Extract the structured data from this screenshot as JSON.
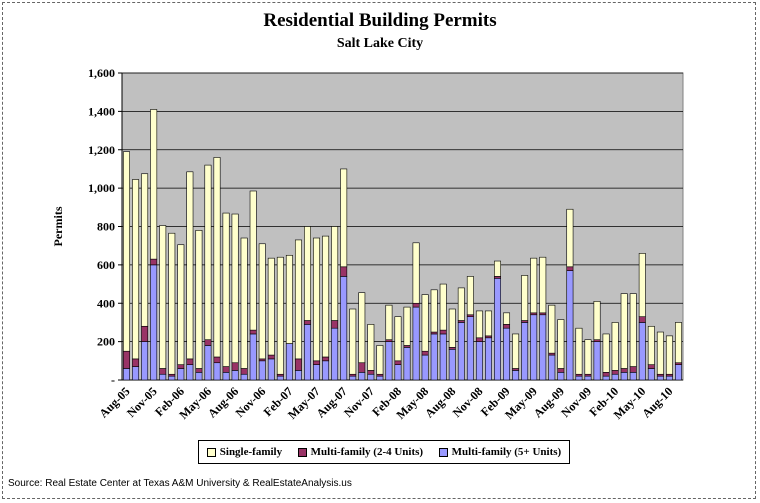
{
  "chart_data": {
    "type": "bar",
    "stacked": true,
    "title": "Residential Building Permits",
    "subtitle": "Salt Lake City",
    "ylabel": "Permits",
    "ylim": [
      0,
      1600
    ],
    "yticks": [
      "-",
      "200",
      "400",
      "600",
      "800",
      "1,000",
      "1,200",
      "1,400",
      "1,600"
    ],
    "xtick_labels": [
      "Aug-05",
      "Nov-05",
      "Feb-06",
      "May-06",
      "Aug-06",
      "Nov-06",
      "Feb-07",
      "May-07",
      "Aug-07",
      "Nov-07",
      "Feb-08",
      "May-08",
      "Aug-08",
      "Nov-08",
      "Feb-09",
      "May-09",
      "Aug-09",
      "Nov-09",
      "Feb-10",
      "May-10",
      "Aug-10"
    ],
    "grid": true,
    "legend_position": "bottom",
    "colors": {
      "plot_bg": "#c0c0c0",
      "single": "#ffffcc",
      "multi24": "#993366",
      "multi5": "#9999ff"
    },
    "series": [
      {
        "name": "Multi-family (5+ Units)",
        "values": [
          60,
          70,
          200,
          600,
          30,
          20,
          60,
          80,
          40,
          180,
          90,
          40,
          50,
          30,
          240,
          100,
          110,
          20,
          190,
          50,
          290,
          80,
          100,
          270,
          540,
          20,
          40,
          30,
          20,
          200,
          80,
          170,
          380,
          130,
          240,
          240,
          160,
          300,
          330,
          200,
          220,
          530,
          270,
          50,
          300,
          340,
          340,
          130,
          40,
          570,
          20,
          20,
          200,
          20,
          30,
          40,
          40,
          300,
          60,
          20,
          20,
          80
        ]
      },
      {
        "name": "Multi-family (2-4 Units)",
        "values": [
          90,
          40,
          80,
          30,
          30,
          10,
          20,
          30,
          20,
          30,
          30,
          30,
          40,
          30,
          20,
          10,
          20,
          10,
          0,
          60,
          20,
          20,
          20,
          40,
          50,
          10,
          50,
          20,
          10,
          10,
          20,
          10,
          20,
          20,
          10,
          20,
          10,
          10,
          10,
          20,
          10,
          10,
          20,
          10,
          10,
          10,
          10,
          10,
          20,
          20,
          10,
          10,
          10,
          20,
          20,
          20,
          30,
          30,
          20,
          10,
          10,
          10
        ]
      },
      {
        "name": "Single-family",
        "values": [
          1040,
          935,
          795,
          780,
          745,
          735,
          625,
          975,
          720,
          910,
          1040,
          800,
          775,
          680,
          725,
          600,
          505,
          610,
          460,
          620,
          490,
          640,
          630,
          490,
          510,
          340,
          365,
          240,
          150,
          180,
          230,
          200,
          315,
          295,
          220,
          240,
          200,
          170,
          200,
          140,
          130,
          80,
          60,
          180,
          235,
          285,
          290,
          250,
          255,
          300,
          240,
          180,
          200,
          200,
          250,
          390,
          380,
          330,
          200,
          220,
          200,
          210
        ]
      }
    ]
  }
}
